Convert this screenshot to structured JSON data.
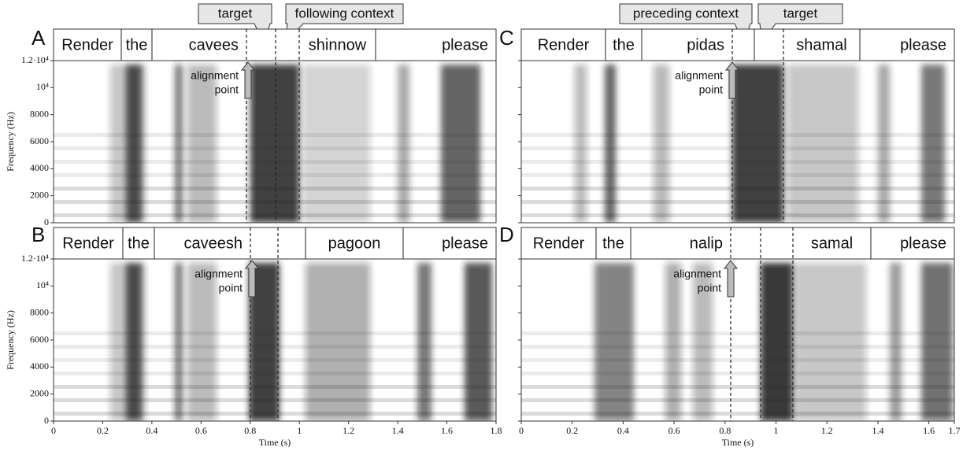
{
  "columns": [
    {
      "x_ticks": [
        0,
        0.2,
        0.4,
        0.6,
        0.8,
        1,
        1.2,
        1.4,
        1.6,
        1.8
      ],
      "x_label": "Time (s)",
      "y_label": "Frequency (Hz)",
      "y_ticks": [
        "0",
        "2000",
        "4000",
        "6000",
        "8000",
        "10⁴",
        "1.2·10⁴"
      ],
      "callouts": [
        "target",
        "following context"
      ],
      "panels": [
        {
          "letter": "A",
          "words": [
            "Render",
            "the",
            "cavees",
            "shinnow",
            "please"
          ],
          "annotation": [
            "alignment",
            "point"
          ]
        },
        {
          "letter": "B",
          "words": [
            "Render",
            "the",
            "caveesh",
            "pagoon",
            "please"
          ],
          "annotation": [
            "alignment",
            "point"
          ]
        }
      ]
    },
    {
      "x_ticks": [
        0,
        0.2,
        0.4,
        0.6,
        0.8,
        1,
        1.2,
        1.4,
        1.6,
        1.7
      ],
      "x_label": "Time (s)",
      "callouts": [
        "preceding context",
        "target"
      ],
      "panels": [
        {
          "letter": "C",
          "words": [
            "Render",
            "the",
            "pidas",
            "shamal",
            "please"
          ],
          "annotation": [
            "alignment",
            "point"
          ]
        },
        {
          "letter": "D",
          "words": [
            "Render",
            "the",
            "nalip",
            "samal",
            "please"
          ],
          "annotation": [
            "alignment",
            "point"
          ]
        }
      ]
    }
  ]
}
